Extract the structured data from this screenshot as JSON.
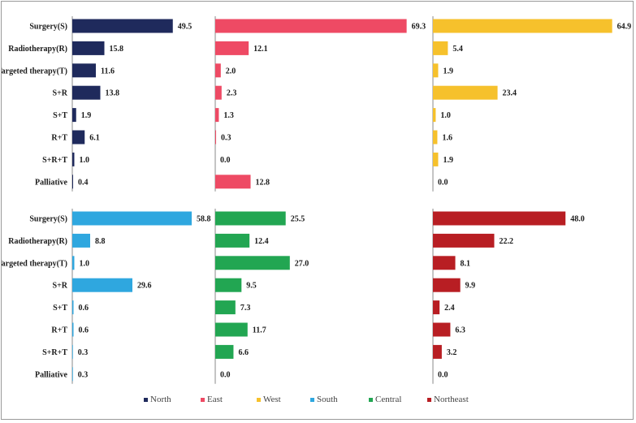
{
  "chart_data": {
    "type": "bar",
    "orientation": "horizontal",
    "categories": [
      "Surgery(S)",
      "Radiotherapy(R)",
      "Targeted therapy(T)",
      "S+R",
      "S+T",
      "R+T",
      "S+R+T",
      "Palliative"
    ],
    "panels": [
      {
        "name": "North",
        "color": "#1f2a5c",
        "values": [
          49.5,
          15.8,
          11.6,
          13.8,
          1.9,
          6.1,
          1.0,
          0.4
        ]
      },
      {
        "name": "East",
        "color": "#ee4a64",
        "values": [
          69.3,
          12.1,
          2.0,
          2.3,
          1.3,
          0.3,
          0.0,
          12.8
        ]
      },
      {
        "name": "West",
        "color": "#f6c12c",
        "values": [
          64.9,
          5.4,
          1.9,
          23.4,
          1.0,
          1.6,
          1.9,
          0.0
        ]
      },
      {
        "name": "South",
        "color": "#2fa7df",
        "values": [
          58.8,
          8.8,
          1.0,
          29.6,
          0.6,
          0.6,
          0.3,
          0.3
        ]
      },
      {
        "name": "Central",
        "color": "#22a652",
        "values": [
          25.5,
          12.4,
          27.0,
          9.5,
          7.3,
          11.7,
          6.6,
          0.0
        ]
      },
      {
        "name": "Northeast",
        "color": "#b81e23",
        "values": [
          48.0,
          22.2,
          8.1,
          9.9,
          2.4,
          6.3,
          3.2,
          0.0
        ]
      }
    ],
    "legend": [
      "North",
      "East",
      "West",
      "South",
      "Central",
      "Northeast"
    ],
    "legend_position": "bottom",
    "grid": false
  }
}
